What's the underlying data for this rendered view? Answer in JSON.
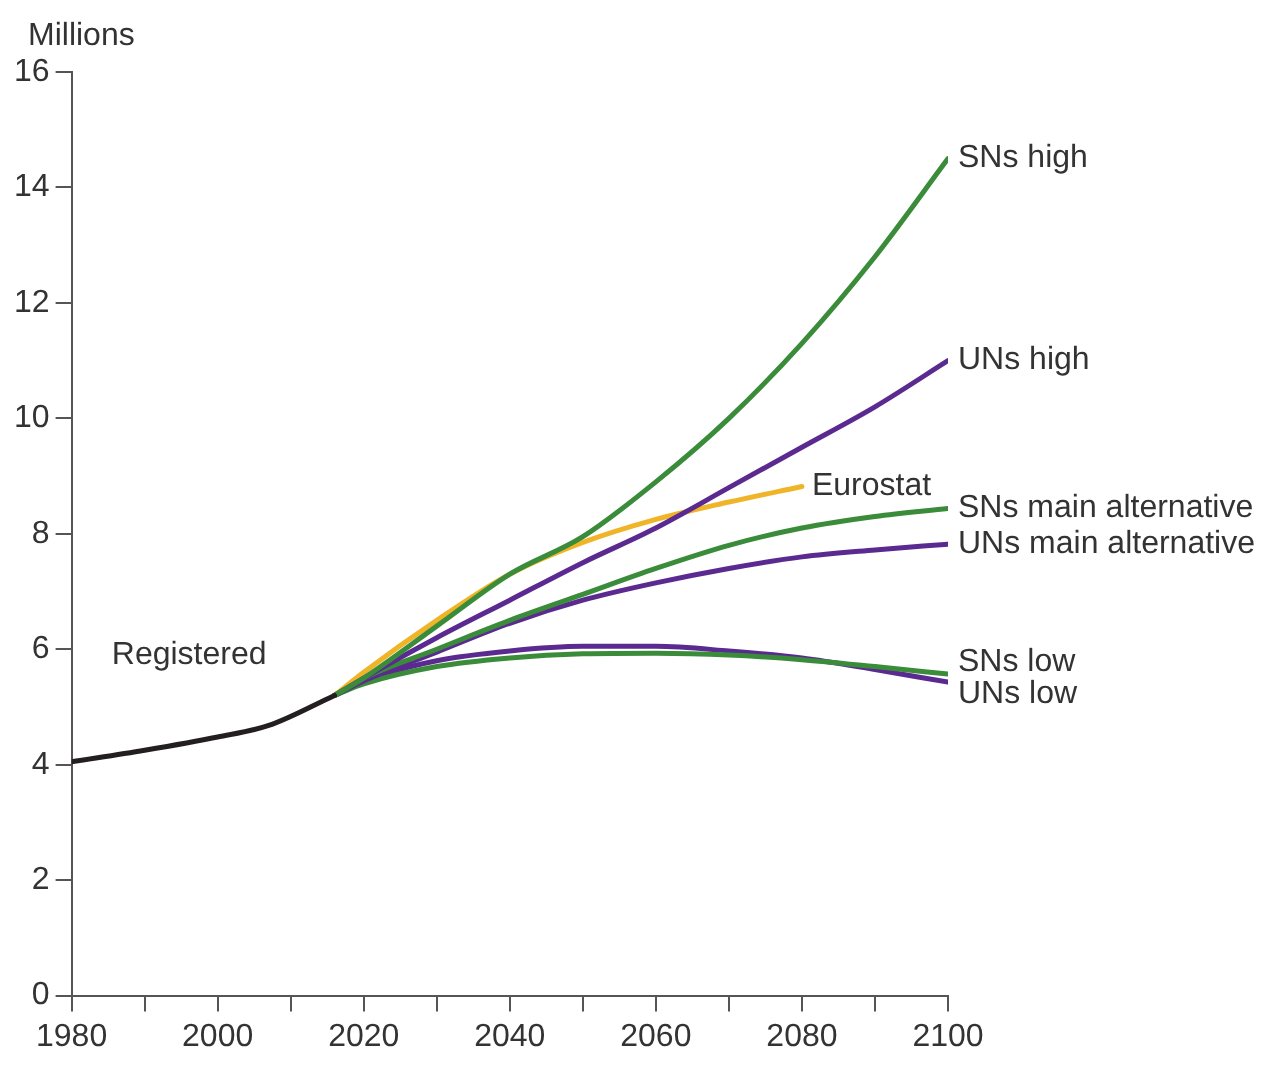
{
  "chart_data": {
    "type": "line",
    "ylabel": "Millions",
    "xlim": [
      1980,
      2100
    ],
    "xticks": [
      1980,
      {
        "value": 1990,
        "label": null
      },
      2000,
      {
        "value": 2010,
        "label": null
      },
      2020,
      {
        "value": 2030,
        "label": null
      },
      2040,
      {
        "value": 2050,
        "label": null
      },
      2060,
      {
        "value": 2070,
        "label": null
      },
      2080,
      {
        "value": 2090,
        "label": null
      },
      2100
    ],
    "ylim": [
      0,
      16
    ],
    "yticks": [
      0,
      2,
      4,
      6,
      8,
      10,
      12,
      14,
      16
    ],
    "grid": false,
    "legend": false,
    "marker": "none",
    "line_style": "solid",
    "series": [
      {
        "name": "Registered",
        "color": "#231f20",
        "x": [
          1980,
          1990,
          2000,
          2007,
          2016
        ],
        "values": [
          4.05,
          4.25,
          4.48,
          4.68,
          5.2
        ]
      },
      {
        "name": "SNs high",
        "color": "#3a8c3a",
        "x": [
          2016,
          2020,
          2030,
          2040,
          2050,
          2060,
          2070,
          2080,
          2090,
          2100
        ],
        "values": [
          5.2,
          5.5,
          6.4,
          7.3,
          7.95,
          8.9,
          10.0,
          11.3,
          12.8,
          14.5
        ]
      },
      {
        "name": "UNs high",
        "color": "#5b2a91",
        "x": [
          2016,
          2020,
          2030,
          2040,
          2050,
          2060,
          2070,
          2080,
          2090,
          2100
        ],
        "values": [
          5.2,
          5.5,
          6.2,
          6.85,
          7.5,
          8.1,
          8.8,
          9.5,
          10.2,
          11.0
        ]
      },
      {
        "name": "Eurostat",
        "color": "#f0b429",
        "x": [
          2016,
          2020,
          2030,
          2040,
          2050,
          2060,
          2070,
          2080
        ],
        "values": [
          5.2,
          5.6,
          6.5,
          7.3,
          7.85,
          8.25,
          8.55,
          8.82
        ]
      },
      {
        "name": "SNs main alternative",
        "color": "#3a8c3a",
        "x": [
          2016,
          2020,
          2030,
          2040,
          2050,
          2060,
          2070,
          2080,
          2090,
          2100
        ],
        "values": [
          5.2,
          5.5,
          6.0,
          6.5,
          6.95,
          7.4,
          7.8,
          8.1,
          8.3,
          8.44
        ]
      },
      {
        "name": "UNs main alternative",
        "color": "#5b2a91",
        "x": [
          2016,
          2020,
          2030,
          2040,
          2050,
          2060,
          2070,
          2080,
          2090,
          2100
        ],
        "values": [
          5.2,
          5.45,
          5.95,
          6.45,
          6.85,
          7.15,
          7.4,
          7.6,
          7.72,
          7.82
        ]
      },
      {
        "name": "SNs low",
        "color": "#3a8c3a",
        "x": [
          2016,
          2020,
          2030,
          2040,
          2050,
          2060,
          2070,
          2080,
          2090,
          2100
        ],
        "values": [
          5.2,
          5.4,
          5.7,
          5.85,
          5.92,
          5.93,
          5.9,
          5.82,
          5.7,
          5.57
        ]
      },
      {
        "name": "UNs low",
        "color": "#5b2a91",
        "x": [
          2016,
          2020,
          2030,
          2040,
          2050,
          2060,
          2070,
          2080,
          2090,
          2100
        ],
        "values": [
          5.2,
          5.45,
          5.8,
          5.97,
          6.05,
          6.05,
          5.97,
          5.85,
          5.65,
          5.43
        ]
      }
    ]
  }
}
